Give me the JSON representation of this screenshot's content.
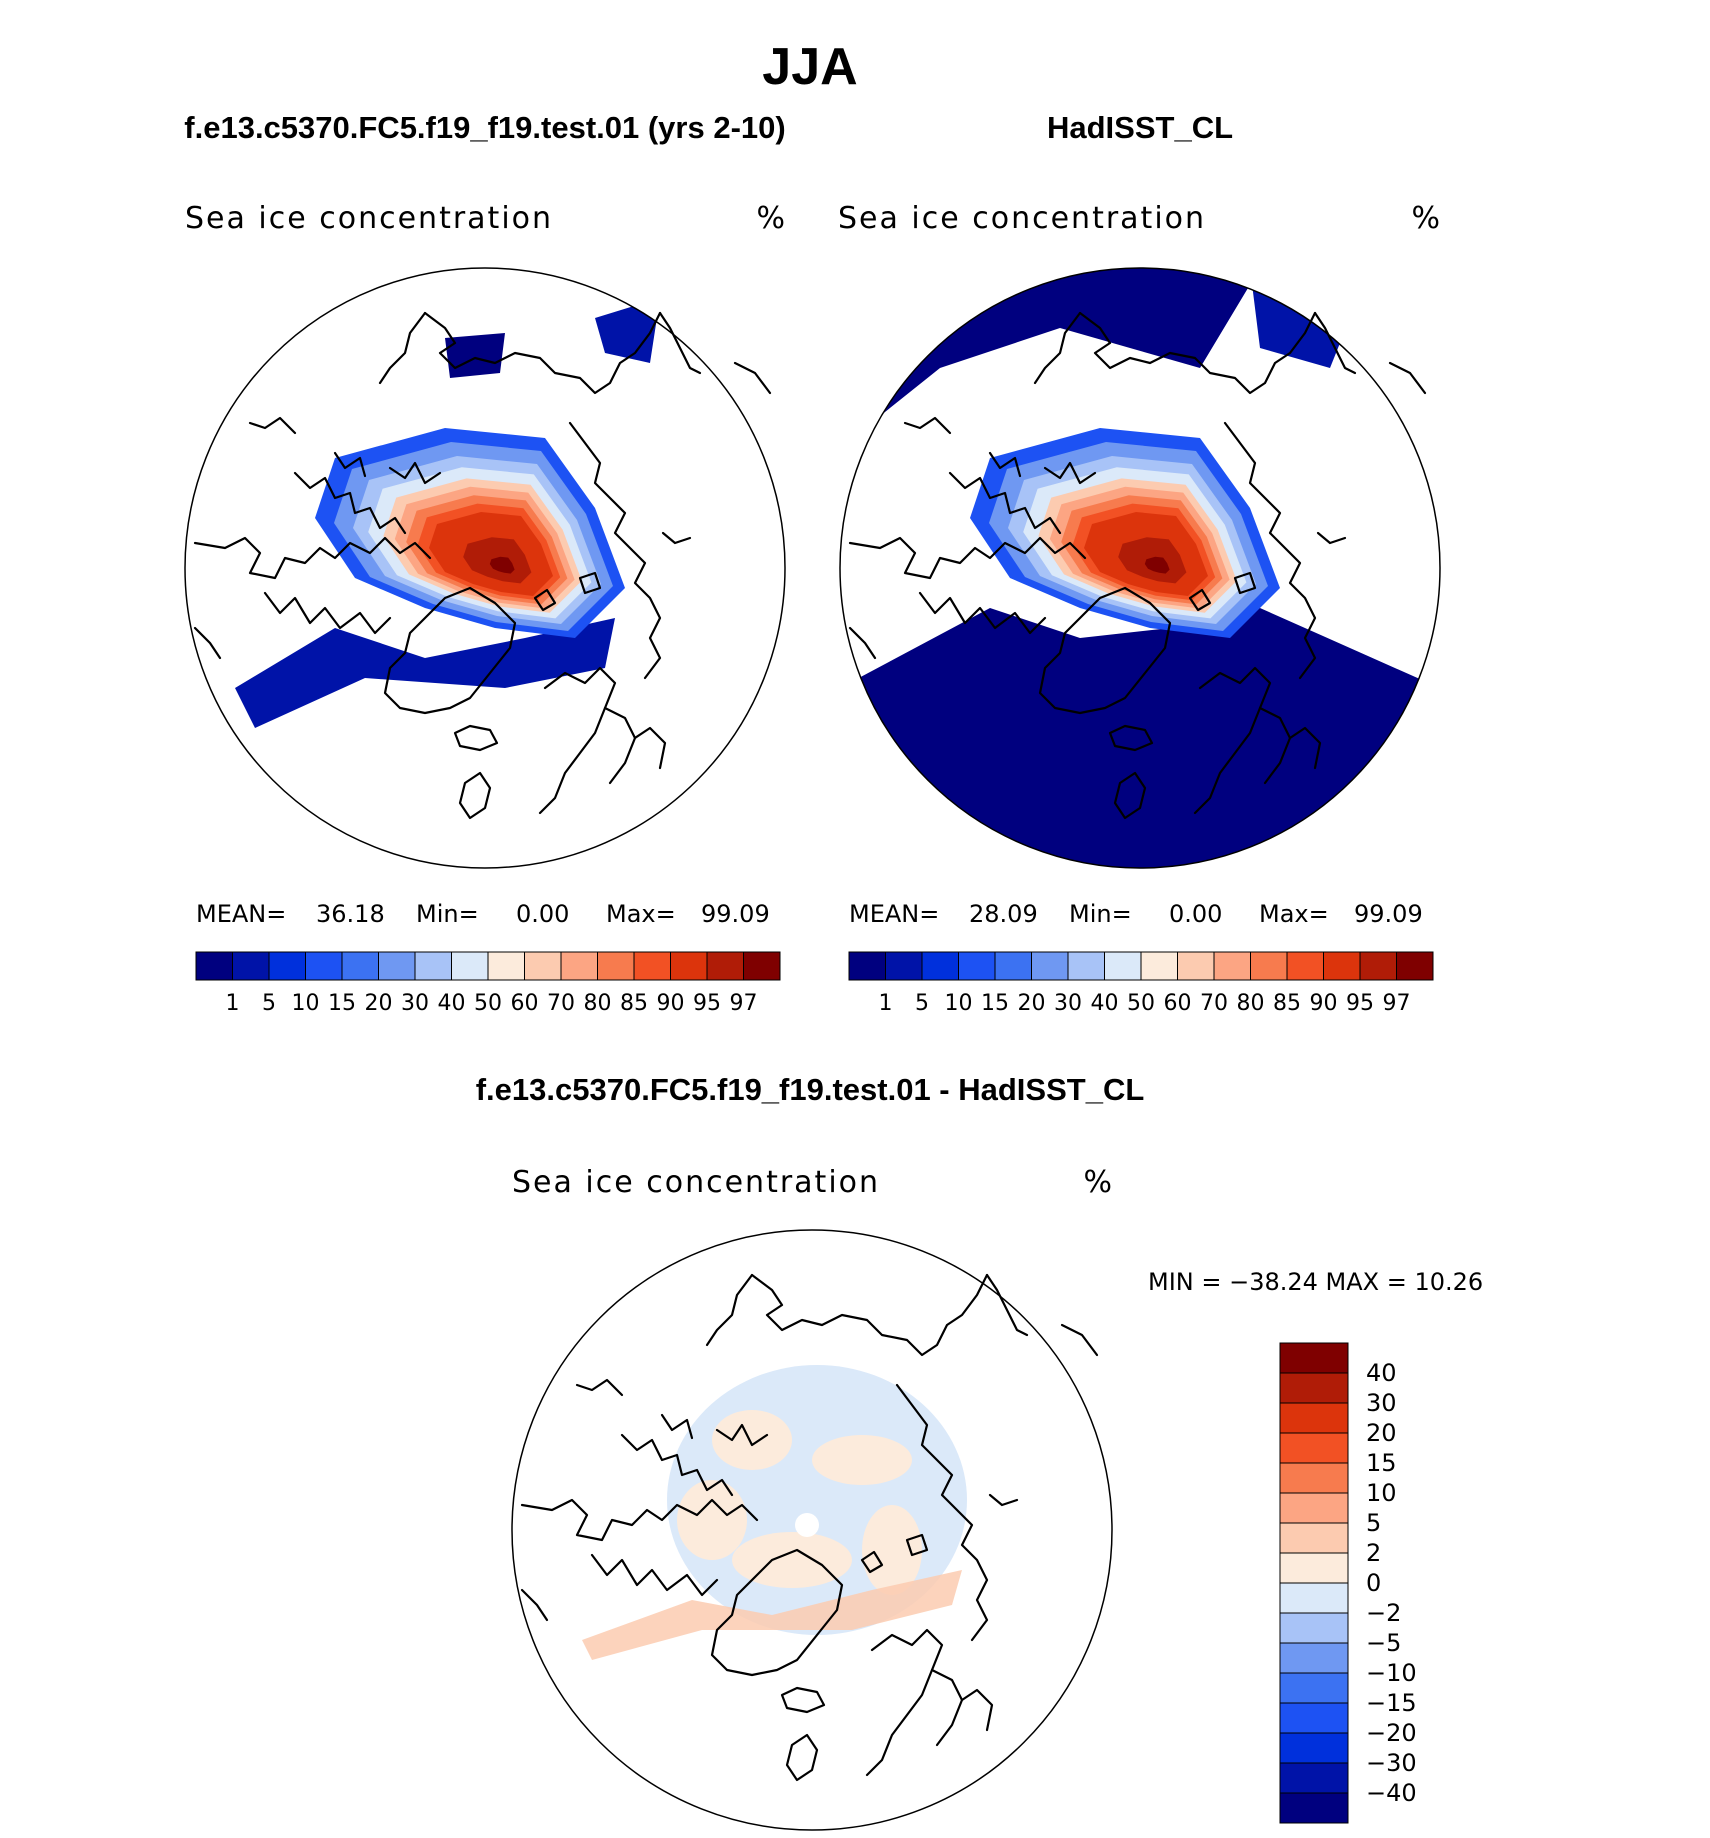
{
  "title": "JJA",
  "colors": {
    "concentration_scale": [
      "#00007f",
      "#0013a8",
      "#0030dc",
      "#1d52f3",
      "#3c72f2",
      "#6f98f2",
      "#a8c3f7",
      "#dbe9f9",
      "#fcebdc",
      "#fccbb0",
      "#fca583",
      "#f77b4e",
      "#f25124",
      "#dc340c",
      "#b01c07",
      "#7f0000"
    ],
    "difference_scale": [
      "#00007f",
      "#0013a8",
      "#0030dc",
      "#1d52f3",
      "#3c72f2",
      "#6f98f2",
      "#a8c3f7",
      "#dbe9f9",
      "#fcebdc",
      "#fccbb0",
      "#fca583",
      "#f77b4e",
      "#f25124",
      "#dc340c",
      "#b01c07",
      "#7f0000"
    ]
  },
  "panels": [
    {
      "heading": "f.e13.c5370.FC5.f19_f19.test.01 (yrs 2-10)",
      "label": "Sea ice concentration",
      "units": "%",
      "stats": {
        "mean_label": "MEAN=",
        "mean": "36.18",
        "min_label": "Min=",
        "min": "0.00",
        "max_label": "Max=",
        "max": "99.09"
      },
      "colorbar_ticks": [
        "1",
        "5",
        "10",
        "15",
        "20",
        "30",
        "40",
        "50",
        "60",
        "70",
        "80",
        "85",
        "90",
        "95",
        "97"
      ]
    },
    {
      "heading": "HadISST_CL",
      "label": "Sea ice concentration",
      "units": "%",
      "stats": {
        "mean_label": "MEAN=",
        "mean": "28.09",
        "min_label": "Min=",
        "min": "0.00",
        "max_label": "Max=",
        "max": "99.09"
      },
      "colorbar_ticks": [
        "1",
        "5",
        "10",
        "15",
        "20",
        "30",
        "40",
        "50",
        "60",
        "70",
        "80",
        "85",
        "90",
        "95",
        "97"
      ]
    },
    {
      "heading": "f.e13.c5370.FC5.f19_f19.test.01 - HadISST_CL",
      "label": "Sea ice concentration",
      "units": "%",
      "stats_text": "MIN = −38.24 MAX =   10.26",
      "colorbar_ticks": [
        "40",
        "30",
        "20",
        "15",
        "10",
        "5",
        "2",
        "0",
        "−2",
        "−5",
        "−10",
        "−15",
        "−20",
        "−30",
        "−40"
      ]
    }
  ],
  "chart_data": [
    {
      "type": "heatmap",
      "title": "f.e13.c5370.FC5.f19_f19.test.01 (yrs 2-10)",
      "variable": "Sea ice concentration",
      "units": "%",
      "projection": "north polar stereographic",
      "mean": 36.18,
      "min": 0.0,
      "max": 99.09,
      "contour_levels": [
        1,
        5,
        10,
        15,
        20,
        30,
        40,
        50,
        60,
        70,
        80,
        85,
        90,
        95,
        97
      ]
    },
    {
      "type": "heatmap",
      "title": "HadISST_CL",
      "variable": "Sea ice concentration",
      "units": "%",
      "projection": "north polar stereographic",
      "mean": 28.09,
      "min": 0.0,
      "max": 99.09,
      "contour_levels": [
        1,
        5,
        10,
        15,
        20,
        30,
        40,
        50,
        60,
        70,
        80,
        85,
        90,
        95,
        97
      ]
    },
    {
      "type": "heatmap",
      "title": "f.e13.c5370.FC5.f19_f19.test.01 - HadISST_CL",
      "variable": "Sea ice concentration",
      "units": "%",
      "projection": "north polar stereographic",
      "min": -38.24,
      "max": 10.26,
      "contour_levels": [
        -40,
        -30,
        -20,
        -15,
        -10,
        -5,
        -2,
        0,
        2,
        5,
        10,
        15,
        20,
        30,
        40
      ]
    }
  ]
}
